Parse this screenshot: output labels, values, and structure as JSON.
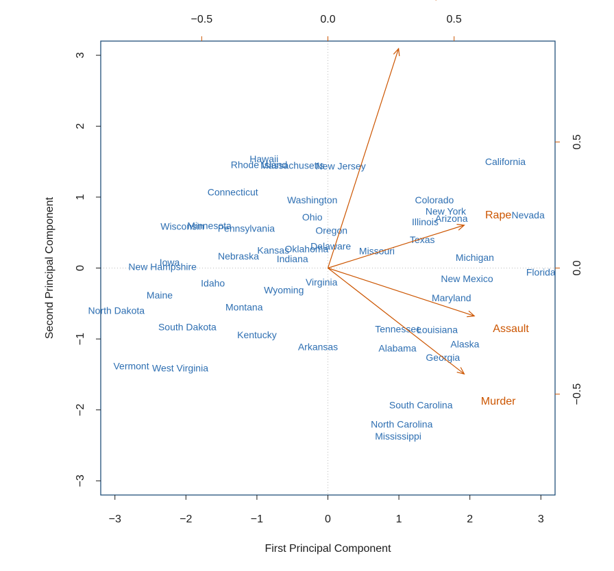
{
  "chart_data": {
    "type": "scatter",
    "subtype": "biplot",
    "xlabel": "First Principal Component",
    "ylabel": "Second Principal Component",
    "xlim": [
      -3.2,
      3.2
    ],
    "ylim": [
      -3.2,
      3.2
    ],
    "x_ticks": [
      "−3",
      "−2",
      "−1",
      "0",
      "1",
      "2",
      "3"
    ],
    "x_tick_values": [
      -3,
      -2,
      -1,
      0,
      1,
      2,
      3
    ],
    "y_ticks": [
      "−3",
      "−2",
      "−1",
      "0",
      "1",
      "2",
      "3"
    ],
    "y_tick_values": [
      -3,
      -2,
      -1,
      0,
      1,
      2,
      3
    ],
    "loading_lim": [
      -0.9,
      0.9
    ],
    "top_ticks": [
      "−0.5",
      "0.0",
      "0.5"
    ],
    "top_tick_values": [
      -0.5,
      0.0,
      0.5
    ],
    "right_ticks": [
      "−0.5",
      "0.0",
      "0.5"
    ],
    "right_tick_values": [
      -0.5,
      0.0,
      0.5
    ],
    "colors": {
      "scores": "#2e6fb2",
      "loadings": "#cc5500",
      "frame": "#1f4e79",
      "zero_line": "#bbbbbb"
    },
    "points": [
      {
        "label": "California",
        "x": 2.5,
        "y": 1.5
      },
      {
        "label": "Hawaii",
        "x": -0.9,
        "y": 1.54
      },
      {
        "label": "Rhode Island",
        "x": -0.97,
        "y": 1.46
      },
      {
        "label": "Massachusetts",
        "x": -0.5,
        "y": 1.45
      },
      {
        "label": "New Jersey",
        "x": 0.18,
        "y": 1.44
      },
      {
        "label": "Connecticut",
        "x": -1.34,
        "y": 1.07
      },
      {
        "label": "Washington",
        "x": -0.22,
        "y": 0.96
      },
      {
        "label": "Colorado",
        "x": 1.5,
        "y": 0.96
      },
      {
        "label": "New York",
        "x": 1.66,
        "y": 0.8
      },
      {
        "label": "Nevada",
        "x": 2.82,
        "y": 0.75
      },
      {
        "label": "Ohio",
        "x": -0.22,
        "y": 0.72
      },
      {
        "label": "Arizona",
        "x": 1.74,
        "y": 0.7
      },
      {
        "label": "Illinois",
        "x": 1.37,
        "y": 0.65
      },
      {
        "label": "Wisconsin",
        "x": -2.05,
        "y": 0.59
      },
      {
        "label": "Minnesota",
        "x": -1.67,
        "y": 0.6
      },
      {
        "label": "Pennsylvania",
        "x": -1.15,
        "y": 0.56
      },
      {
        "label": "Oregon",
        "x": 0.05,
        "y": 0.53
      },
      {
        "label": "Texas",
        "x": 1.33,
        "y": 0.4
      },
      {
        "label": "Delaware",
        "x": 0.04,
        "y": 0.31
      },
      {
        "label": "Kansas",
        "x": -0.77,
        "y": 0.25
      },
      {
        "label": "Oklahoma",
        "x": -0.3,
        "y": 0.27
      },
      {
        "label": "Missouri",
        "x": 0.69,
        "y": 0.24
      },
      {
        "label": "Nebraska",
        "x": -1.26,
        "y": 0.17
      },
      {
        "label": "Indiana",
        "x": -0.5,
        "y": 0.13
      },
      {
        "label": "Michigan",
        "x": 2.07,
        "y": 0.15
      },
      {
        "label": "Iowa",
        "x": -2.23,
        "y": 0.08
      },
      {
        "label": "New Hampshire",
        "x": -2.33,
        "y": 0.02
      },
      {
        "label": "Florida",
        "x": 3.0,
        "y": -0.06
      },
      {
        "label": "Virginia",
        "x": -0.09,
        "y": -0.2
      },
      {
        "label": "New Mexico",
        "x": 1.96,
        "y": -0.15
      },
      {
        "label": "Idaho",
        "x": -1.62,
        "y": -0.21
      },
      {
        "label": "Wyoming",
        "x": -0.62,
        "y": -0.31
      },
      {
        "label": "Maine",
        "x": -2.37,
        "y": -0.38
      },
      {
        "label": "Maryland",
        "x": 1.74,
        "y": -0.42
      },
      {
        "label": "Montana",
        "x": -1.18,
        "y": -0.55
      },
      {
        "label": "North Dakota",
        "x": -2.98,
        "y": -0.6
      },
      {
        "label": "South Dakota",
        "x": -1.98,
        "y": -0.83
      },
      {
        "label": "Tennessee",
        "x": 0.99,
        "y": -0.86
      },
      {
        "label": "Louisiana",
        "x": 1.54,
        "y": -0.87
      },
      {
        "label": "Kentucky",
        "x": -1.0,
        "y": -0.94
      },
      {
        "label": "Alaska",
        "x": 1.93,
        "y": -1.07
      },
      {
        "label": "Arkansas",
        "x": -0.14,
        "y": -1.11
      },
      {
        "label": "Alabama",
        "x": 0.98,
        "y": -1.13
      },
      {
        "label": "Georgia",
        "x": 1.62,
        "y": -1.26
      },
      {
        "label": "Vermont",
        "x": -2.77,
        "y": -1.38
      },
      {
        "label": "West Virginia",
        "x": -2.08,
        "y": -1.41
      },
      {
        "label": "South Carolina",
        "x": 1.31,
        "y": -1.93
      },
      {
        "label": "North Carolina",
        "x": 1.04,
        "y": -2.2
      },
      {
        "label": "Mississippi",
        "x": 0.99,
        "y": -2.37
      }
    ],
    "loadings": [
      {
        "name": "UrbanPop",
        "x": 0.28,
        "y": 0.87
      },
      {
        "name": "Rape",
        "x": 0.54,
        "y": 0.17
      },
      {
        "name": "Assault",
        "x": 0.58,
        "y": -0.19
      },
      {
        "name": "Murder",
        "x": 0.54,
        "y": -0.42
      }
    ]
  }
}
